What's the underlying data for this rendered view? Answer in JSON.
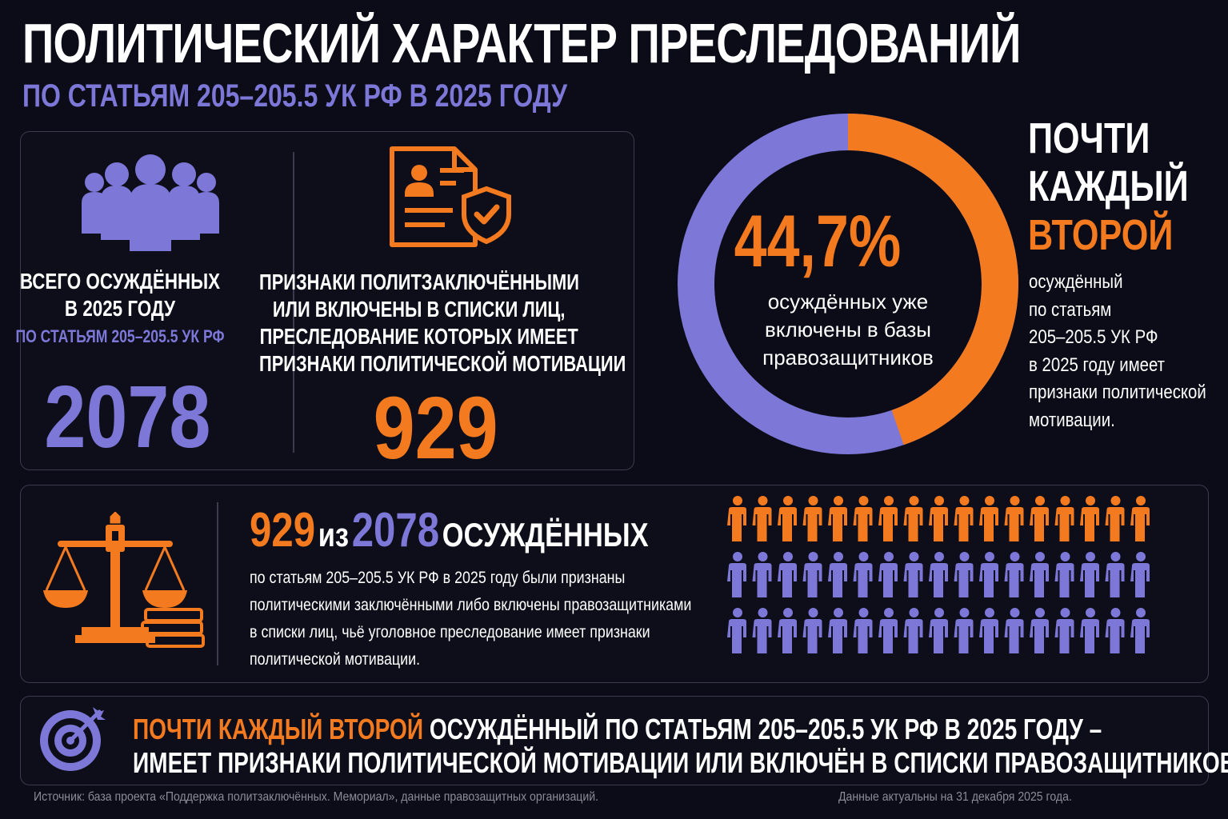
{
  "header": {
    "title": "ПОЛИТИЧЕСКИЙ ХАРАКТЕР ПРЕСЛЕДОВАНИЙ",
    "subtitle": "ПО СТАТЬЯМ 205–205.5 УК РФ В 2025 ГОДУ"
  },
  "total": {
    "label_line1": "ВСЕГО ОСУЖДЁННЫХ",
    "label_line2": "В 2025 ГОДУ",
    "sublabel": "ПО СТАТЬЯМ 205–205.5 УК РФ",
    "value": "2078",
    "icon": "people-group-icon"
  },
  "signs": {
    "label_lines": [
      "ПРИЗНАКИ ПОЛИТЗАКЛЮЧЁННЫМИ",
      "ИЛИ ВКЛЮЧЕНЫ В СПИСКИ ЛИЦ,",
      "ПРЕСЛЕДОВАНИЕ КОТОРЫХ ИМЕЕТ",
      "ПРИЗНАКИ ПОЛИТИЧЕСКОЙ МОТИВАЦИИ"
    ],
    "value": "929",
    "icon": "document-shield-icon"
  },
  "donut": {
    "percent_label": "44,7%",
    "percent_value": 44.7,
    "caption_lines": [
      "осуждённых уже",
      "включены в базы",
      "правозащитников"
    ],
    "colors": {
      "highlight": "#f47a1f",
      "rest": "#7d78d8"
    }
  },
  "side": {
    "line1": "ПОЧТИ",
    "line2": "КАЖДЫЙ",
    "line3": "ВТОРОЙ",
    "text_lines": [
      "осуждённый",
      "по статьям",
      "205–205.5 УК РФ",
      "в 2025 году имеет",
      "признаки политической",
      "мотивации."
    ]
  },
  "middle": {
    "num_a": "929",
    "word_of": "из",
    "num_b": "2078",
    "word_convicted": "ОСУЖДЁННЫХ",
    "text_lines": [
      "по статьям 205–205.5 УК РФ в 2025 году были признаны",
      "политическими заключёнными либо включены правозащитниками",
      "в списки лиц, чьё уголовное преследование имеет признаки",
      "политической мотивации."
    ],
    "icon": "scales-of-justice-icon",
    "people_rows": 3,
    "people_per_row": 17,
    "highlighted_rows": 1
  },
  "bottom": {
    "highlight": "ПОЧТИ КАЖДЫЙ ВТОРОЙ",
    "line1_rest": " ОСУЖДЁННЫЙ ПО СТАТЬЯМ 205–205.5 УК РФ В 2025 ГОДУ –",
    "line2": "ИМЕЕТ ПРИЗНАКИ ПОЛИТИЧЕСКОЙ МОТИВАЦИИ ИЛИ ВКЛЮЧЁН В СПИСКИ ПРАВОЗАЩИТНИКОВ.",
    "icon": "target-icon"
  },
  "footer": {
    "source": "Источник: база проекта «Поддержка политзаключённых. Мемориал», данные правозащитных организаций.",
    "date_note": "Данные актуальны на 31 декабря 2025 года."
  }
}
